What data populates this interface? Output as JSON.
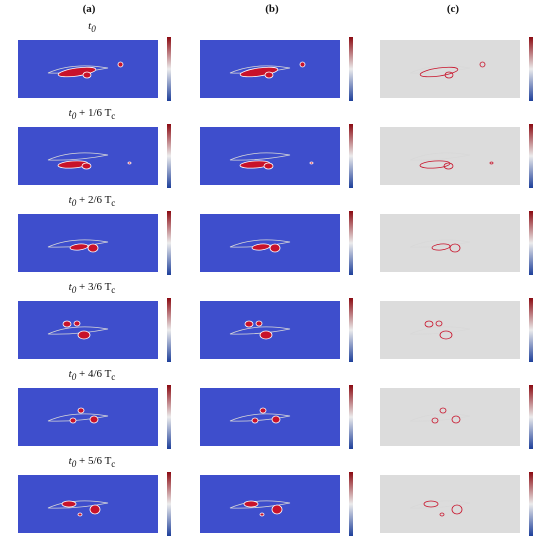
{
  "columns": [
    {
      "label": "(a)",
      "colors": {
        "bg": "#3e4ecc",
        "hi": "#c8122a",
        "lo": "#ffffff"
      }
    },
    {
      "label": "(b)",
      "colors": {
        "bg": "#3e4ecc",
        "hi": "#c8122a",
        "lo": "#ffffff"
      }
    },
    {
      "label": "(c)",
      "colors": {
        "bg": "#dcdcdc",
        "hi": "#c8122a",
        "lo": "#ffffff"
      }
    }
  ],
  "rows": [
    {
      "time_label": "t0",
      "t": "t",
      "sub": "0",
      "tail": ""
    },
    {
      "time_label": "t0 + 1/6 Tc",
      "t": "t",
      "sub": "0",
      "tail": " + 1/6 T",
      "tsub": "c"
    },
    {
      "time_label": "t0 + 2/6 Tc",
      "t": "t",
      "sub": "0",
      "tail": " + 2/6 T",
      "tsub": "c"
    },
    {
      "time_label": "t0 + 3/6 Tc",
      "t": "t",
      "sub": "0",
      "tail": " + 3/6 T",
      "tsub": "c"
    },
    {
      "time_label": "t0 + 4/6 Tc",
      "t": "t",
      "sub": "0",
      "tail": " + 4/6 T",
      "tsub": "c"
    },
    {
      "time_label": "t0 + 5/6 Tc",
      "t": "t",
      "sub": "0",
      "tail": " + 5/6 T",
      "tsub": "c"
    }
  ],
  "colorbar": {
    "top": "#8b0a12",
    "mid": "#ececec",
    "bottom": "#1d3f9a"
  },
  "outline_color": "#d8d8d8"
}
